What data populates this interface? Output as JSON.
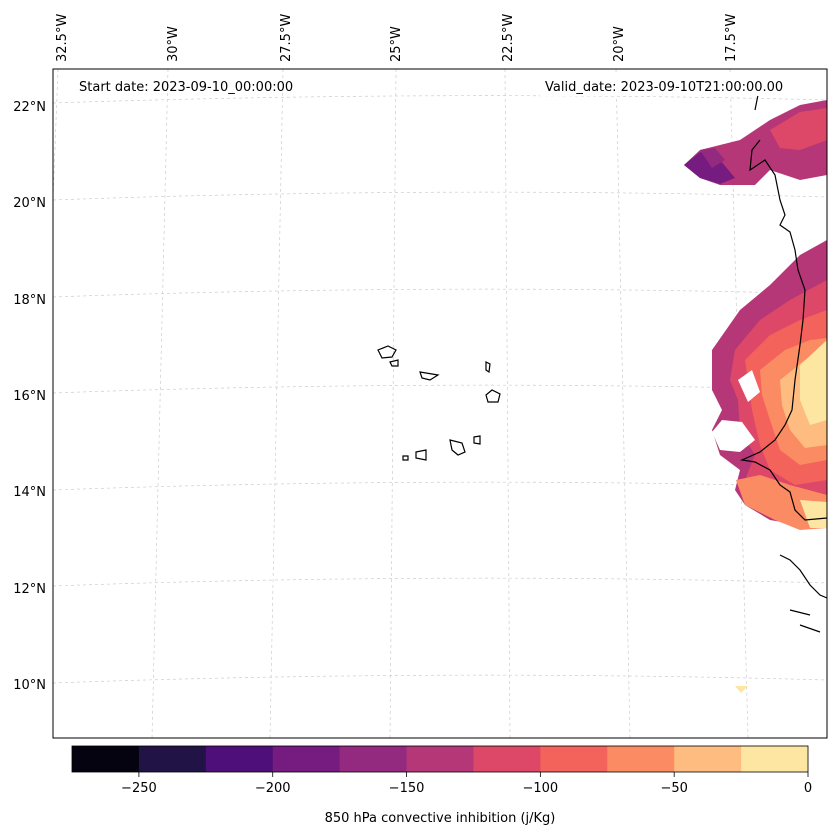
{
  "map": {
    "start_label": "Start date: 2023-09-10_00:00:00",
    "valid_label": "Valid_date: 2023-09-10T21:00:00.00",
    "lon_ticks": [
      "32.5°W",
      "30°W",
      "27.5°W",
      "25°W",
      "22.5°W",
      "20°W",
      "17.5°W"
    ],
    "lat_ticks": [
      "22°N",
      "20°N",
      "18°N",
      "16°N",
      "14°N",
      "12°N",
      "10°N"
    ],
    "gridlines": true
  },
  "colorbar": {
    "label": "850 hPa convective inhibition (j/Kg)",
    "tick_labels": [
      "−250",
      "−200",
      "−150",
      "−100",
      "−50",
      "0"
    ],
    "levels": [
      -275,
      -250,
      -225,
      -200,
      -175,
      -150,
      -125,
      -100,
      -75,
      -50,
      -25,
      0
    ],
    "colors": [
      "#05030f",
      "#211345",
      "#4f0f7b",
      "#761b80",
      "#942a80",
      "#b63777",
      "#dd4868",
      "#f3625b",
      "#fb8b62",
      "#febc80",
      "#fde6a2"
    ]
  },
  "colors": {
    "coastline": "#000000",
    "gridline": "#cccccc"
  }
}
